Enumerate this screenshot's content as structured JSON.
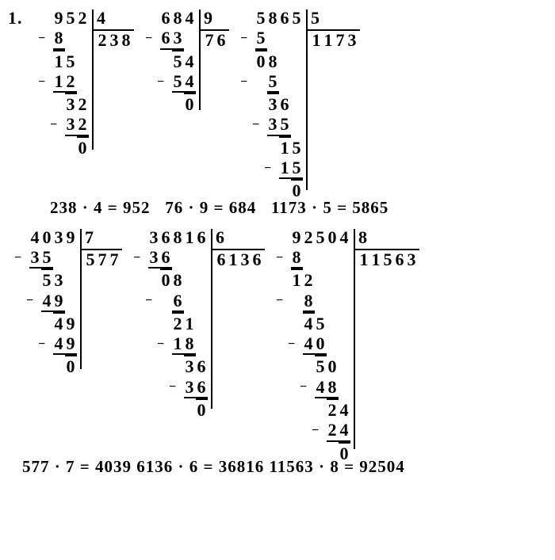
{
  "problem_number": "1.",
  "row1": {
    "p1": {
      "dividend": [
        "9",
        "5",
        "2"
      ],
      "divisor": "4",
      "quotient": [
        "2",
        "3",
        "8"
      ],
      "steps": [
        [
          "8",
          "",
          ""
        ],
        [
          "1",
          "5",
          ""
        ],
        [
          "1",
          "2",
          ""
        ],
        [
          "",
          "3",
          "2"
        ],
        [
          "",
          "3",
          "2"
        ],
        [
          "",
          "",
          "0"
        ]
      ]
    },
    "p2": {
      "dividend": [
        "6",
        "8",
        "4"
      ],
      "divisor": "9",
      "quotient": [
        "7",
        "6"
      ],
      "steps": [
        [
          "6",
          "3",
          ""
        ],
        [
          "",
          "5",
          "4"
        ],
        [
          "",
          "5",
          "4"
        ],
        [
          "",
          "",
          "0"
        ]
      ]
    },
    "p3": {
      "dividend": [
        "5",
        "8",
        "6",
        "5"
      ],
      "divisor": "5",
      "quotient": [
        "1",
        "1",
        "7",
        "3"
      ],
      "steps": [
        [
          "5",
          "",
          "",
          ""
        ],
        [
          "0",
          "8",
          "",
          ""
        ],
        [
          "",
          "5",
          "",
          ""
        ],
        [
          "",
          "3",
          "6",
          ""
        ],
        [
          "",
          "3",
          "5",
          ""
        ],
        [
          "",
          "",
          "1",
          "5"
        ],
        [
          "",
          "",
          "1",
          "5"
        ],
        [
          "",
          "",
          "",
          "0"
        ]
      ]
    }
  },
  "checks1": {
    "a": "238 · 4 = 952",
    "b": "76 · 9 = 684",
    "c": "1173 · 5 = 5865"
  },
  "row2": {
    "p1": {
      "dividend": [
        "4",
        "0",
        "3",
        "9"
      ],
      "divisor": "7",
      "quotient": [
        "5",
        "7",
        "7"
      ],
      "steps": [
        [
          "3",
          "5",
          "",
          ""
        ],
        [
          "",
          "5",
          "3",
          ""
        ],
        [
          "",
          "4",
          "9",
          ""
        ],
        [
          "",
          "",
          "4",
          "9"
        ],
        [
          "",
          "",
          "4",
          "9"
        ],
        [
          "",
          "",
          "",
          "0"
        ]
      ]
    },
    "p2": {
      "dividend": [
        "3",
        "6",
        "8",
        "1",
        "6"
      ],
      "divisor": "6",
      "quotient": [
        "6",
        "1",
        "3",
        "6"
      ],
      "steps": [
        [
          "3",
          "6",
          "",
          "",
          ""
        ],
        [
          "",
          "0",
          "8",
          "",
          ""
        ],
        [
          "",
          "",
          "6",
          "",
          ""
        ],
        [
          "",
          "",
          "2",
          "1",
          ""
        ],
        [
          "",
          "",
          "1",
          "8",
          ""
        ],
        [
          "",
          "",
          "",
          "3",
          "6"
        ],
        [
          "",
          "",
          "",
          "3",
          "6"
        ],
        [
          "",
          "",
          "",
          "",
          "0"
        ]
      ]
    },
    "p3": {
      "dividend": [
        "9",
        "2",
        "5",
        "0",
        "4"
      ],
      "divisor": "8",
      "quotient": [
        "1",
        "1",
        "5",
        "6",
        "3"
      ],
      "steps": [
        [
          "8",
          "",
          "",
          "",
          ""
        ],
        [
          "1",
          "2",
          "",
          "",
          ""
        ],
        [
          "",
          "8",
          "",
          "",
          ""
        ],
        [
          "",
          "4",
          "5",
          "",
          ""
        ],
        [
          "",
          "4",
          "0",
          "",
          ""
        ],
        [
          "",
          "",
          "5",
          "0",
          ""
        ],
        [
          "",
          "",
          "4",
          "8",
          ""
        ],
        [
          "",
          "",
          "",
          "2",
          "4"
        ],
        [
          "",
          "",
          "",
          "2",
          "4"
        ],
        [
          "",
          "",
          "",
          "",
          "0"
        ]
      ]
    }
  },
  "checks2": {
    "a": "577 · 7 = 4039",
    "b": "6136 · 6 = 36816",
    "c": "11563 · 8 = 92504"
  }
}
